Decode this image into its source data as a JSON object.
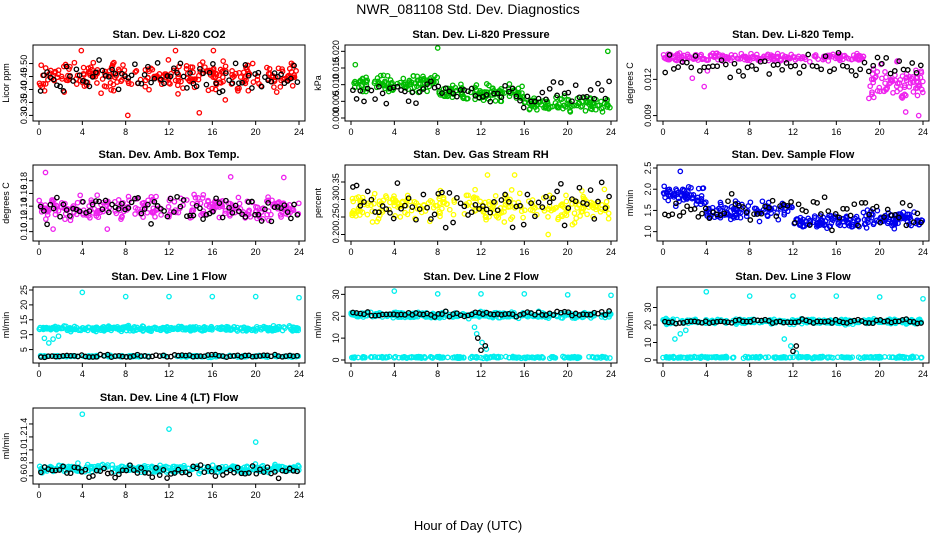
{
  "figure": {
    "title": "NWR_081108  Std. Dev. Diagnostics",
    "xlabel": "Hour of Day (UTC)"
  },
  "chart_data": [
    {
      "type": "scatter",
      "title": "Stan. Dev. Li-820 CO2",
      "ylabel": "Licor ppm",
      "color": "#ff0000",
      "xlim": [
        0,
        24
      ],
      "ylim": [
        0.29,
        0.56
      ],
      "xticks": [
        "0",
        "4",
        "8",
        "12",
        "16",
        "20",
        "24"
      ],
      "yticks": [
        {
          "v": 0.3,
          "label": "0.30"
        },
        {
          "v": 0.35,
          "label": "0.35"
        },
        {
          "v": 0.4,
          "label": "0.40"
        },
        {
          "v": 0.45,
          "label": "0.45"
        },
        {
          "v": 0.5,
          "label": "0.50"
        }
      ],
      "bands": [
        {
          "x0": 0,
          "x1": 24,
          "lo": 0.37,
          "hi": 0.53,
          "n": 260,
          "out": [
            [
              8.2,
              0.3
            ],
            [
              14.8,
              0.31
            ],
            [
              3.9,
              0.55
            ],
            [
              12.6,
              0.55
            ],
            [
              16.1,
              0.55
            ],
            [
              17.2,
              0.36
            ]
          ]
        }
      ],
      "black": {
        "lo": 0.38,
        "hi": 0.52,
        "n": 80
      }
    },
    {
      "type": "scatter",
      "title": "Stan. Dev. Li-820 Pressure",
      "ylabel": "kPa",
      "color": "#00bb00",
      "xlim": [
        0,
        24
      ],
      "ylim": [
        0,
        0.021
      ],
      "xticks": [
        "0",
        "4",
        "8",
        "12",
        "16",
        "20",
        "24"
      ],
      "yticks": [
        {
          "v": 0,
          "label": "0.000"
        },
        {
          "v": 0.005,
          "label": "0.005"
        },
        {
          "v": 0.01,
          "label": "0.010"
        },
        {
          "v": 0.015,
          "label": "0.015"
        },
        {
          "v": 0.02,
          "label": "0.020"
        }
      ],
      "bands": [
        {
          "x0": 0,
          "x1": 8,
          "lo": 0.007,
          "hi": 0.014,
          "n": 100,
          "out": [
            [
              8,
              0.021
            ],
            [
              0.4,
              0.016
            ]
          ]
        },
        {
          "x0": 8,
          "x1": 16,
          "lo": 0.004,
          "hi": 0.011,
          "n": 100,
          "out": [
            [
              23.7,
              0.02
            ]
          ]
        },
        {
          "x0": 16,
          "x1": 24,
          "lo": 0.001,
          "hi": 0.007,
          "n": 100,
          "out": []
        }
      ],
      "black": {
        "lo": 0.002,
        "hi": 0.012,
        "n": 70
      }
    },
    {
      "type": "scatter",
      "title": "Stan. Dev. Li-820 Temp.",
      "ylabel": "degrees C",
      "color": "#ee22ee",
      "xlim": [
        0,
        24
      ],
      "ylim": [
        0.0088,
        0.0146
      ],
      "xticks": [
        "0",
        "4",
        "8",
        "12",
        "16",
        "20",
        "24"
      ],
      "yticks": [
        {
          "v": 0.009,
          "label": "0.009"
        },
        {
          "v": 0.012,
          "label": "0.012"
        }
      ],
      "bands": [
        {
          "x0": 0,
          "x1": 19,
          "lo": 0.0133,
          "hi": 0.0143,
          "n": 200,
          "out": [
            [
              3.8,
              0.0114
            ],
            [
              2.7,
              0.0121
            ],
            [
              4.1,
              0.0127
            ]
          ]
        },
        {
          "x0": 19,
          "x1": 24,
          "lo": 0.0095,
          "hi": 0.0138,
          "n": 80,
          "out": [
            [
              23.6,
              0.009
            ],
            [
              22.4,
              0.0093
            ]
          ]
        }
      ],
      "black": {
        "lo": 0.012,
        "hi": 0.0143,
        "n": 60
      }
    },
    {
      "type": "scatter",
      "title": "Stan. Dev. Amb. Box Temp.",
      "ylabel": "degrees C",
      "color": "#ee22ee",
      "xlim": [
        0,
        24
      ],
      "ylim": [
        0.09,
        0.2
      ],
      "xticks": [
        "0",
        "4",
        "8",
        "12",
        "16",
        "20",
        "24"
      ],
      "yticks": [
        {
          "v": 0.1,
          "label": "0.10"
        },
        {
          "v": 0.12,
          "label": "0.12"
        },
        {
          "v": 0.14,
          "label": "0.14"
        },
        {
          "v": 0.16,
          "label": "0.16"
        },
        {
          "v": 0.18,
          "label": "0.18"
        }
      ],
      "bands": [
        {
          "x0": 0,
          "x1": 24,
          "lo": 0.11,
          "hi": 0.165,
          "n": 260,
          "out": [
            [
              0.6,
              0.193
            ],
            [
              17.7,
              0.186
            ],
            [
              22.6,
              0.185
            ],
            [
              6.3,
              0.104
            ],
            [
              1.3,
              0.104
            ]
          ]
        }
      ],
      "black": {
        "lo": 0.11,
        "hi": 0.16,
        "n": 80
      }
    },
    {
      "type": "scatter",
      "title": "Stan. Dev. Gas Stream RH",
      "ylabel": "percent",
      "color": "#ffff00",
      "xlim": [
        0,
        24
      ],
      "ylim": [
        0.19,
        0.39
      ],
      "xticks": [
        "0",
        "4",
        "8",
        "12",
        "16",
        "20",
        "24"
      ],
      "yticks": [
        {
          "v": 0.2,
          "label": "0.20"
        },
        {
          "v": 0.25,
          "label": "0.25"
        },
        {
          "v": 0.3,
          "label": "0.30"
        },
        {
          "v": 0.35,
          "label": "0.35"
        }
      ],
      "bands": [
        {
          "x0": 0,
          "x1": 24,
          "lo": 0.22,
          "hi": 0.34,
          "n": 260,
          "out": [
            [
              18.2,
              0.2
            ],
            [
              12.6,
              0.37
            ],
            [
              15.1,
              0.37
            ]
          ]
        }
      ],
      "black": {
        "lo": 0.21,
        "hi": 0.36,
        "n": 70
      }
    },
    {
      "type": "scatter",
      "title": "Stan. Dev. Sample Flow",
      "ylabel": "ml/min",
      "color": "#0000ee",
      "xlim": [
        0,
        24
      ],
      "ylim": [
        0.85,
        2.5
      ],
      "xticks": [
        "0",
        "4",
        "8",
        "12",
        "16",
        "20",
        "24"
      ],
      "yticks": [
        {
          "v": 1.0,
          "label": "1.0"
        },
        {
          "v": 1.5,
          "label": "1.5"
        },
        {
          "v": 2.0,
          "label": "2.0"
        },
        {
          "v": 2.5,
          "label": "2.5"
        }
      ],
      "bands": [
        {
          "x0": 0,
          "x1": 4,
          "lo": 1.5,
          "hi": 2.2,
          "n": 60,
          "out": [
            [
              1.6,
              2.42
            ]
          ]
        },
        {
          "x0": 4,
          "x1": 12,
          "lo": 1.2,
          "hi": 1.8,
          "n": 90,
          "out": []
        },
        {
          "x0": 12,
          "x1": 18,
          "lo": 1.0,
          "hi": 1.5,
          "n": 80,
          "out": []
        },
        {
          "x0": 18,
          "x1": 24,
          "lo": 1.0,
          "hi": 1.6,
          "n": 80,
          "out": []
        }
      ],
      "black": {
        "lo": 1.0,
        "hi": 1.9,
        "n": 70
      }
    },
    {
      "type": "scatter",
      "title": "Stan. Dev. Line 1 Flow",
      "ylabel": "ml/min",
      "color": "#00eeee",
      "xlim": [
        0,
        24
      ],
      "ylim": [
        1.5,
        25
      ],
      "xticks": [
        "0",
        "4",
        "8",
        "12",
        "16",
        "20",
        "24"
      ],
      "yticks": [
        {
          "v": 5,
          "label": "5"
        },
        {
          "v": 10,
          "label": "10"
        },
        {
          "v": 15,
          "label": "15"
        },
        {
          "v": 20,
          "label": "20"
        },
        {
          "v": 25,
          "label": "25"
        }
      ],
      "bands": [
        {
          "x0": 0,
          "x1": 24,
          "lo": 10.8,
          "hi": 13.2,
          "n": 320,
          "out": [
            [
              4,
              24.2
            ],
            [
              8,
              22.8
            ],
            [
              12,
              22.8
            ],
            [
              16,
              22.8
            ],
            [
              20,
              22.8
            ],
            [
              24,
              22.4
            ],
            [
              0.9,
              7.2
            ],
            [
              1.3,
              8.5
            ],
            [
              0.5,
              8.8
            ],
            [
              1.8,
              9.5
            ]
          ]
        },
        {
          "x0": 0,
          "x1": 24,
          "lo": 2.3,
          "hi": 3.2,
          "n": 150,
          "out": []
        }
      ],
      "black": {
        "lo": 2.3,
        "hi": 3.4,
        "n": 70
      }
    },
    {
      "type": "scatter",
      "title": "Stan. Dev. Line 2 Flow",
      "ylabel": "ml/min",
      "color": "#00eeee",
      "xlim": [
        0,
        24
      ],
      "ylim": [
        0,
        32
      ],
      "xticks": [
        "0",
        "4",
        "8",
        "12",
        "16",
        "20",
        "24"
      ],
      "yticks": [
        {
          "v": 0,
          "label": "0"
        },
        {
          "v": 10,
          "label": "10"
        },
        {
          "v": 20,
          "label": "20"
        },
        {
          "v": 30,
          "label": "30"
        }
      ],
      "bands": [
        {
          "x0": 0,
          "x1": 24,
          "lo": 18.5,
          "hi": 22.5,
          "n": 320,
          "out": [
            [
              4,
              31.5
            ],
            [
              8,
              30.2
            ],
            [
              12,
              30.2
            ],
            [
              16,
              30.2
            ],
            [
              20,
              29.8
            ],
            [
              24,
              29.6
            ],
            [
              11.6,
              12
            ],
            [
              12.1,
              8
            ],
            [
              12.5,
              5
            ],
            [
              11.4,
              15
            ]
          ]
        },
        {
          "x0": 0,
          "x1": 24,
          "lo": 0.6,
          "hi": 1.8,
          "n": 200,
          "out": []
        }
      ],
      "black": {
        "lo": 19.5,
        "hi": 22.5,
        "n": 70,
        "out": [
          [
            12,
            4.5
          ],
          [
            12.4,
            6.5
          ],
          [
            11.7,
            10
          ]
        ]
      }
    },
    {
      "type": "scatter",
      "title": "Stan. Dev. Line 3 Flow",
      "ylabel": "ml/min",
      "color": "#00eeee",
      "xlim": [
        0,
        24
      ],
      "ylim": [
        0,
        40
      ],
      "xticks": [
        "0",
        "4",
        "8",
        "12",
        "16",
        "20",
        "24"
      ],
      "yticks": [
        {
          "v": 0,
          "label": "0"
        },
        {
          "v": 10,
          "label": "10"
        },
        {
          "v": 20,
          "label": "20"
        },
        {
          "v": 30,
          "label": "30"
        }
      ],
      "bands": [
        {
          "x0": 0,
          "x1": 24,
          "lo": 20,
          "hi": 24,
          "n": 300,
          "out": [
            [
              4,
              39
            ],
            [
              8,
              36.5
            ],
            [
              12,
              36.5
            ],
            [
              16,
              36.5
            ],
            [
              20,
              36
            ],
            [
              24,
              35
            ],
            [
              1.1,
              12
            ],
            [
              1.6,
              15
            ],
            [
              2.1,
              17
            ],
            [
              11.8,
              8
            ],
            [
              12.3,
              4
            ],
            [
              11.2,
              12
            ]
          ]
        },
        {
          "x0": 0,
          "x1": 24,
          "lo": 0.8,
          "hi": 2.2,
          "n": 200,
          "out": []
        }
      ],
      "black": {
        "lo": 20.5,
        "hi": 23.5,
        "n": 70,
        "out": [
          [
            12,
            5
          ],
          [
            12.3,
            8
          ]
        ]
      }
    },
    {
      "type": "scatter",
      "title": "Stan. Dev. Line 4 (LT) Flow",
      "ylabel": "ml/min",
      "color": "#00eeee",
      "xlim": [
        0,
        24
      ],
      "ylim": [
        0.52,
        1.6
      ],
      "xticks": [
        "0",
        "4",
        "8",
        "12",
        "16",
        "20",
        "24"
      ],
      "yticks": [
        {
          "v": 0.6,
          "label": "0.6"
        },
        {
          "v": 0.8,
          "label": "0.8"
        },
        {
          "v": 1.0,
          "label": "1.0"
        },
        {
          "v": 1.2,
          "label": "1.2"
        },
        {
          "v": 1.4,
          "label": "1.4"
        }
      ],
      "bands": [
        {
          "x0": 0,
          "x1": 24,
          "lo": 0.62,
          "hi": 0.8,
          "n": 320,
          "out": [
            [
              4,
              1.55
            ],
            [
              12,
              1.32
            ],
            [
              20,
              1.12
            ]
          ]
        }
      ],
      "black": {
        "lo": 0.55,
        "hi": 0.78,
        "n": 70
      }
    }
  ]
}
